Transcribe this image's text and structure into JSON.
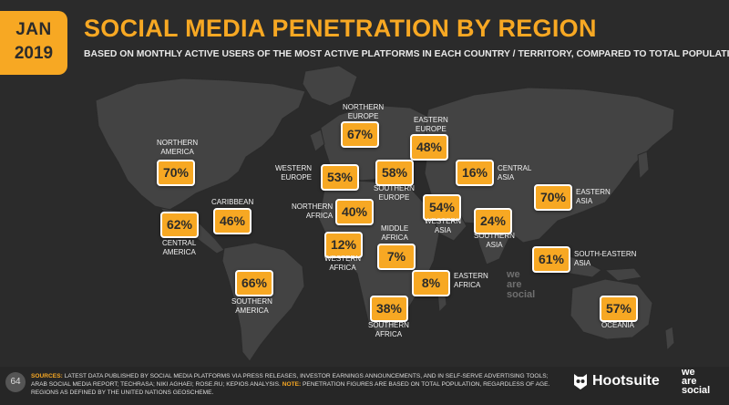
{
  "header": {
    "month": "JAN",
    "year": "2019",
    "title": "SOCIAL MEDIA PENETRATION BY REGION",
    "subtitle": "BASED ON MONTHLY ACTIVE USERS OF THE MOST ACTIVE PLATFORMS IN EACH COUNTRY / TERRITORY, COMPARED TO TOTAL POPULATION"
  },
  "regions": {
    "northern_america": {
      "name": "NORTHERN\nAMERICA",
      "value": "70%"
    },
    "central_america": {
      "name": "CENTRAL\nAMERICA",
      "value": "62%"
    },
    "caribbean": {
      "name": "CARIBBEAN",
      "value": "46%"
    },
    "southern_america": {
      "name": "SOUTHERN\nAMERICA",
      "value": "66%"
    },
    "northern_europe": {
      "name": "NORTHERN\nEUROPE",
      "value": "67%"
    },
    "eastern_europe": {
      "name": "EASTERN\nEUROPE",
      "value": "48%"
    },
    "western_europe": {
      "name": "WESTERN\nEUROPE",
      "value": "53%"
    },
    "southern_europe": {
      "name": "SOUTHERN\nEUROPE",
      "value": "58%"
    },
    "central_asia": {
      "name": "CENTRAL\nASIA",
      "value": "16%"
    },
    "eastern_asia": {
      "name": "EASTERN\nASIA",
      "value": "70%"
    },
    "northern_africa": {
      "name": "NORTHERN\nAFRICA",
      "value": "40%"
    },
    "western_asia": {
      "name": "WESTERN\nASIA",
      "value": "54%"
    },
    "southern_asia": {
      "name": "SOUTHERN\nASIA",
      "value": "24%"
    },
    "western_africa": {
      "name": "WESTERN\nAFRICA",
      "value": "12%"
    },
    "middle_africa": {
      "name": "MIDDLE\nAFRICA",
      "value": "7%"
    },
    "south_eastern_asia": {
      "name": "SOUTH-EASTERN\nASIA",
      "value": "61%"
    },
    "eastern_africa": {
      "name": "EASTERN\nAFRICA",
      "value": "8%"
    },
    "southern_africa": {
      "name": "SOUTHERN\nAFRICA",
      "value": "38%"
    },
    "oceania": {
      "name": "OCEANIA",
      "value": "57%"
    }
  },
  "footer": {
    "page_number": "64",
    "sources_label": "SOURCES:",
    "sources_text": " LATEST DATA PUBLISHED BY SOCIAL MEDIA PLATFORMS VIA PRESS RELEASES, INVESTOR EARNINGS ANNOUNCEMENTS, AND IN SELF-SERVE ADVERTISING TOOLS; ARAB SOCIAL MEDIA REPORT; TECHRASA; NIKI AGHAEI; ROSE.RU; KEPIOS ANALYSIS. ",
    "note_label": "NOTE:",
    "note_text": " PENETRATION FIGURES ARE BASED ON TOTAL POPULATION, REGARDLESS OF AGE. REGIONS AS DEFINED BY THE UNITED NATIONS GEOSCHEME.",
    "brand_hootsuite": "Hootsuite",
    "brand_was_1": "we",
    "brand_was_2": "are",
    "brand_was_3": "social"
  },
  "watermark": {
    "line1": "we",
    "line2": "are",
    "line3": "social"
  },
  "colors": {
    "accent": "#f7a823",
    "background": "#2b2b2b",
    "land": "#434343"
  }
}
